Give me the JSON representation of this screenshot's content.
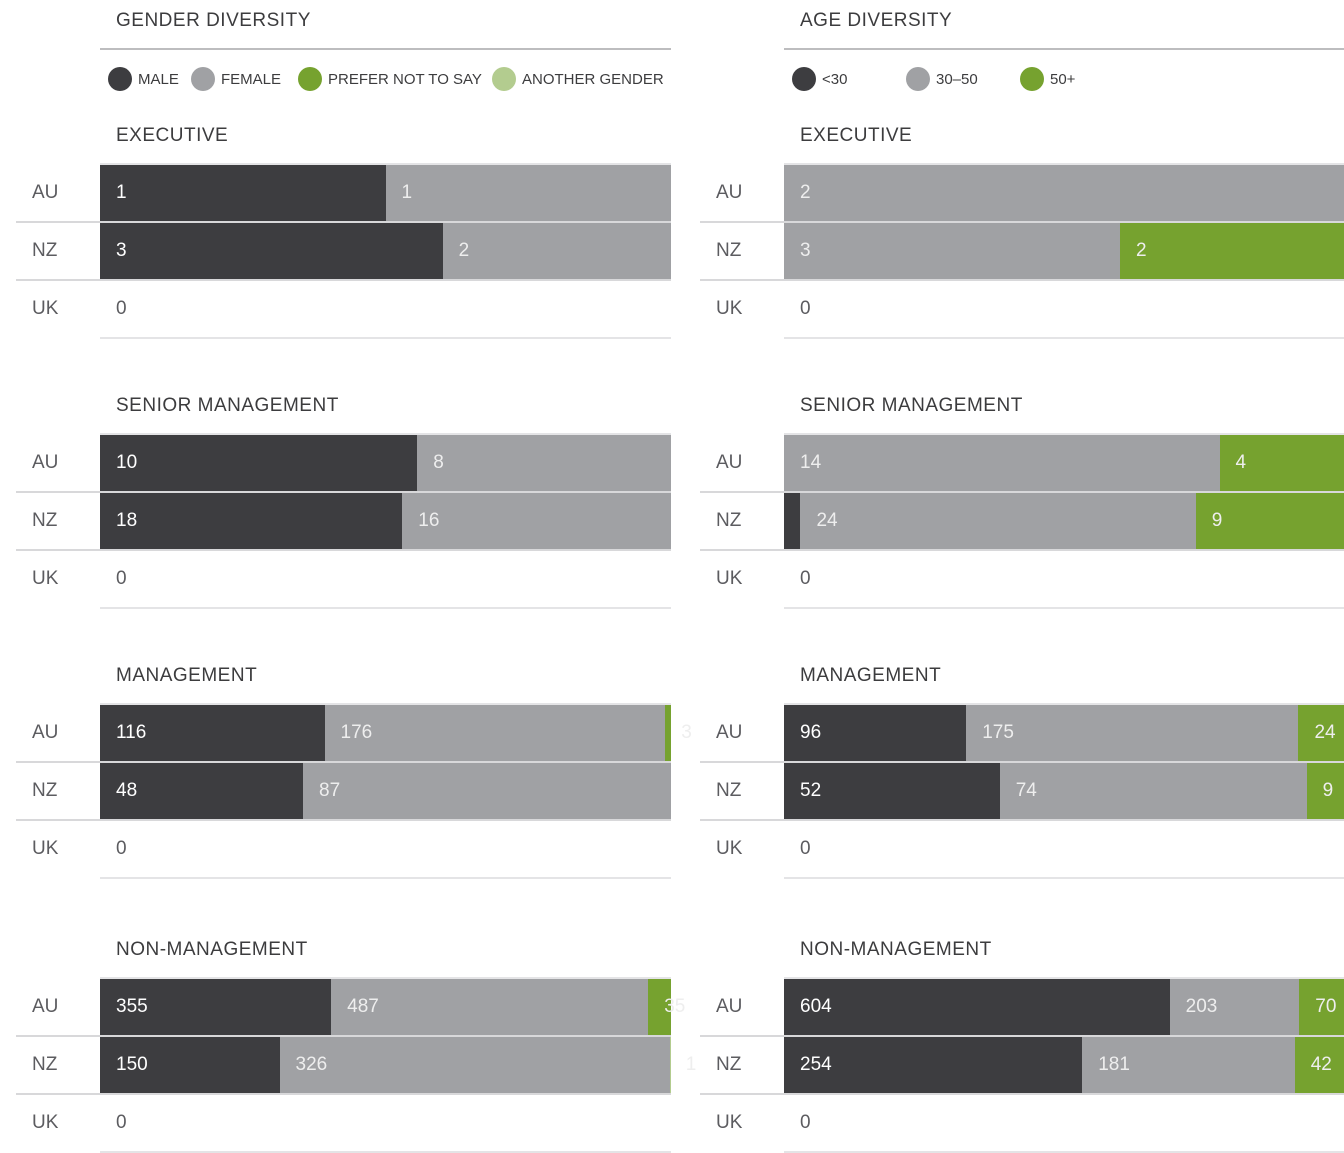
{
  "colors": {
    "male": "#3d3d40",
    "female": "#a0a1a4",
    "prefer_not": "#76a22f",
    "another_gender": "#b3cc8f",
    "age_under30": "#3d3d40",
    "age_30_50": "#a0a1a4",
    "age_50plus": "#76a22f",
    "label_on_dark": "#ffffff",
    "label_on_light": "#eeeeee",
    "label_empty": "#5c5c60"
  },
  "chart_data": [
    {
      "type": "bar",
      "orientation": "horizontal-stacked",
      "title": "GENDER DIVERSITY",
      "legend": [
        {
          "label": "MALE",
          "color_key": "male"
        },
        {
          "label": "FEMALE",
          "color_key": "female"
        },
        {
          "label": "PREFER NOT TO SAY",
          "color_key": "prefer_not"
        },
        {
          "label": "ANOTHER GENDER",
          "color_key": "another_gender"
        }
      ],
      "legend_placement": "top",
      "categories": [
        "AU",
        "NZ",
        "UK"
      ],
      "sections": [
        {
          "title": "EXECUTIVE",
          "rows": [
            {
              "region": "AU",
              "values": [
                1,
                1,
                0,
                0
              ]
            },
            {
              "region": "NZ",
              "values": [
                3,
                2,
                0,
                0
              ]
            },
            {
              "region": "UK",
              "values": [
                0,
                0,
                0,
                0
              ]
            }
          ]
        },
        {
          "title": "SENIOR MANAGEMENT",
          "rows": [
            {
              "region": "AU",
              "values": [
                10,
                8,
                0,
                0
              ]
            },
            {
              "region": "NZ",
              "values": [
                18,
                16,
                0,
                0
              ]
            },
            {
              "region": "UK",
              "values": [
                0,
                0,
                0,
                0
              ]
            }
          ]
        },
        {
          "title": "MANAGEMENT",
          "rows": [
            {
              "region": "AU",
              "values": [
                116,
                176,
                3,
                0
              ]
            },
            {
              "region": "NZ",
              "values": [
                48,
                87,
                0,
                0
              ]
            },
            {
              "region": "UK",
              "values": [
                0,
                0,
                0,
                0
              ]
            }
          ]
        },
        {
          "title": "NON-MANAGEMENT",
          "rows": [
            {
              "region": "AU",
              "values": [
                355,
                487,
                35,
                0
              ]
            },
            {
              "region": "NZ",
              "values": [
                150,
                326,
                0,
                1
              ]
            },
            {
              "region": "UK",
              "values": [
                0,
                0,
                0,
                0
              ]
            }
          ]
        }
      ]
    },
    {
      "type": "bar",
      "orientation": "horizontal-stacked",
      "title": "AGE DIVERSITY",
      "legend": [
        {
          "label": "<30",
          "color_key": "age_under30"
        },
        {
          "label": "30–50",
          "color_key": "age_30_50"
        },
        {
          "label": "50+",
          "color_key": "age_50plus"
        }
      ],
      "legend_placement": "top",
      "categories": [
        "AU",
        "NZ",
        "UK"
      ],
      "sections": [
        {
          "title": "EXECUTIVE",
          "rows": [
            {
              "region": "AU",
              "values": [
                0,
                2,
                0
              ]
            },
            {
              "region": "NZ",
              "values": [
                0,
                3,
                2
              ]
            },
            {
              "region": "UK",
              "values": [
                0,
                0,
                0
              ]
            }
          ]
        },
        {
          "title": "SENIOR MANAGEMENT",
          "rows": [
            {
              "region": "AU",
              "values": [
                0,
                14,
                4
              ]
            },
            {
              "region": "NZ",
              "values": [
                1,
                24,
                9
              ]
            },
            {
              "region": "UK",
              "values": [
                0,
                0,
                0
              ]
            }
          ]
        },
        {
          "title": "MANAGEMENT",
          "rows": [
            {
              "region": "AU",
              "values": [
                96,
                175,
                24
              ]
            },
            {
              "region": "NZ",
              "values": [
                52,
                74,
                9
              ]
            },
            {
              "region": "UK",
              "values": [
                0,
                0,
                0
              ]
            }
          ]
        },
        {
          "title": "NON-MANAGEMENT",
          "rows": [
            {
              "region": "AU",
              "values": [
                604,
                203,
                70
              ]
            },
            {
              "region": "NZ",
              "values": [
                254,
                181,
                42
              ]
            },
            {
              "region": "UK",
              "values": [
                0,
                0,
                0
              ]
            }
          ]
        }
      ]
    }
  ]
}
